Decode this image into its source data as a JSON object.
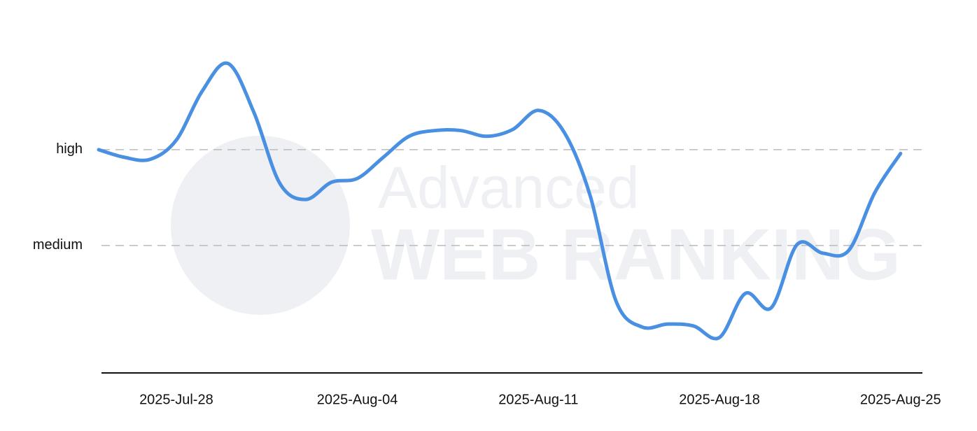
{
  "chart_data": {
    "type": "line",
    "watermark": [
      "Advanced",
      "WEB RANKING"
    ],
    "categories": [
      null,
      null,
      null,
      "2025-Jul-28",
      null,
      null,
      null,
      null,
      null,
      null,
      "2025-Aug-04",
      null,
      null,
      null,
      null,
      null,
      null,
      "2025-Aug-11",
      null,
      null,
      null,
      null,
      null,
      null,
      "2025-Aug-18",
      null,
      null,
      null,
      null,
      null,
      null,
      "2025-Aug-25"
    ],
    "series": [
      {
        "color": "#4a90e2",
        "values": [
          2.0,
          1.92,
          1.9,
          2.1,
          2.61,
          2.9,
          2.39,
          1.65,
          1.48,
          1.66,
          1.7,
          1.92,
          2.14,
          2.2,
          2.2,
          2.14,
          2.21,
          2.41,
          2.18,
          1.52,
          0.42,
          0.15,
          0.18,
          0.16,
          0.04,
          0.5,
          0.35,
          1.01,
          0.92,
          0.95,
          1.55,
          1.96
        ]
      }
    ],
    "ylim": [
      -0.33,
      3
    ],
    "yticks": [
      {
        "value": 1,
        "label": "medium"
      },
      {
        "value": 2,
        "label": "high"
      }
    ],
    "grid": true
  }
}
